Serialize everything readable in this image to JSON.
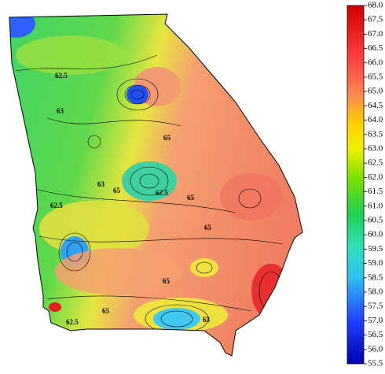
{
  "map": {
    "contour_labels": [
      "62.5",
      "63",
      "62.5",
      "63",
      "65",
      "62.5",
      "65",
      "65",
      "65",
      "65",
      "62.5",
      "65",
      "63"
    ]
  },
  "colorbar": {
    "lim": [
      55.5,
      68
    ],
    "ticks": [
      {
        "value": 68,
        "label": "68.0"
      },
      67.5,
      {
        "value": 67,
        "label": "67.0"
      },
      66.5,
      {
        "value": 66,
        "label": "66.0"
      },
      65.5,
      {
        "value": 65,
        "label": "65.0"
      },
      64.5,
      {
        "value": 64,
        "label": "64.0"
      },
      63.5,
      {
        "value": 63,
        "label": "63.0"
      },
      62.5,
      {
        "value": 62,
        "label": "62.0"
      },
      61.5,
      {
        "value": 61,
        "label": "61.0"
      },
      60.5,
      {
        "value": 60,
        "label": "60.0"
      },
      59.5,
      {
        "value": 59,
        "label": "59.0"
      },
      58.5,
      {
        "value": 58,
        "label": "58.0"
      },
      57.5,
      {
        "value": 57,
        "label": "57.0"
      },
      56.5,
      {
        "value": 56,
        "label": "56.0"
      },
      55.5
    ]
  }
}
